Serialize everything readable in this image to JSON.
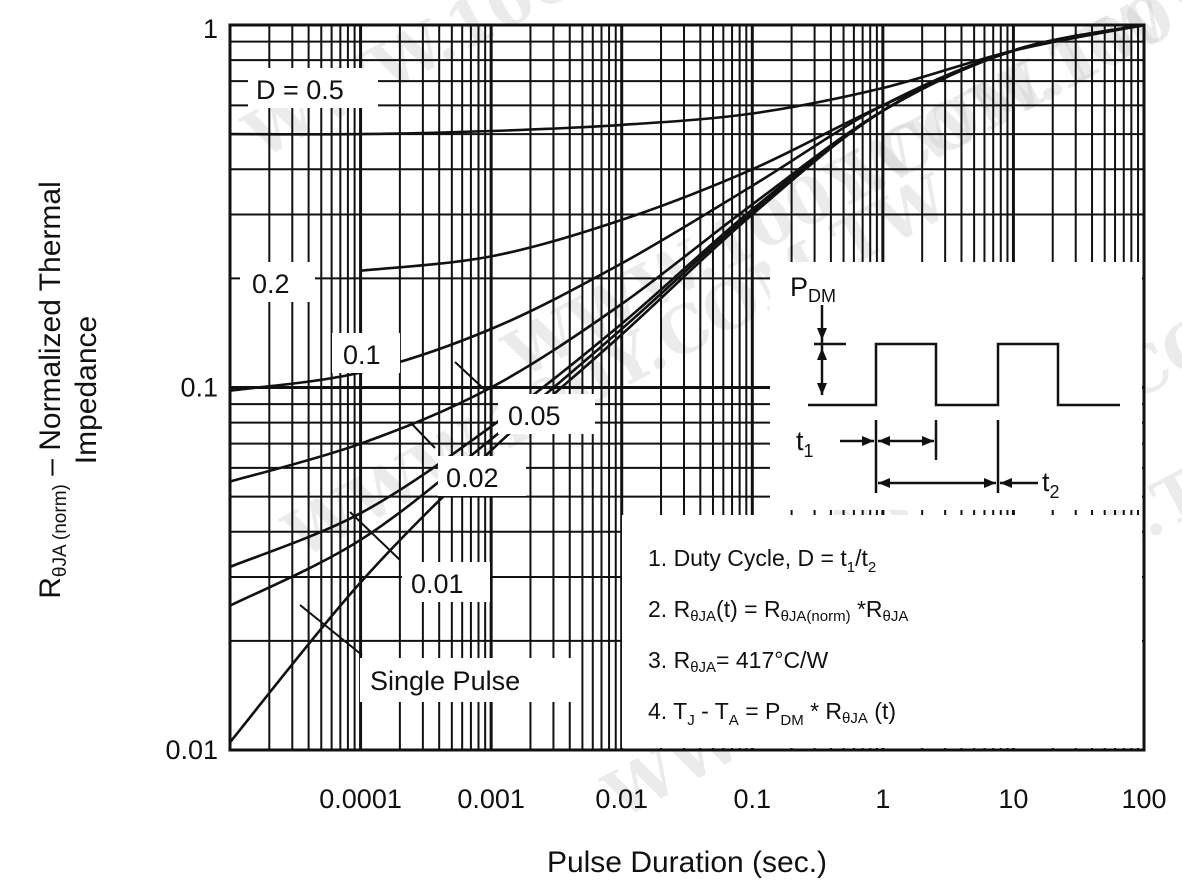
{
  "chart_data": {
    "type": "line",
    "title": "",
    "xlabel": "Pulse Duration (sec.)",
    "ylabel_main": "R",
    "ylabel_sub": "θJA (norm)",
    "ylabel_rest": " – Normalized Thermal",
    "ylabel_line2": "Impedance",
    "x_scale": "log",
    "y_scale": "log",
    "xlim": [
      1e-05,
      100
    ],
    "ylim": [
      0.01,
      1
    ],
    "x_ticks": [
      {
        "value": 0.0001,
        "label": "0.0001"
      },
      {
        "value": 0.001,
        "label": "0.001"
      },
      {
        "value": 0.01,
        "label": "0.01"
      },
      {
        "value": 0.1,
        "label": "0.1"
      },
      {
        "value": 1,
        "label": "1"
      },
      {
        "value": 10,
        "label": "10"
      },
      {
        "value": 100,
        "label": "100"
      }
    ],
    "y_ticks": [
      {
        "value": 1,
        "label": "1"
      },
      {
        "value": 0.1,
        "label": "0.1"
      },
      {
        "value": 0.01,
        "label": "0.01"
      }
    ],
    "grid": true,
    "series": [
      {
        "name": "D = 0.5",
        "x": [
          1e-05,
          0.0001,
          0.001,
          0.01,
          0.1,
          1,
          10,
          100
        ],
        "y": [
          0.5,
          0.5,
          0.51,
          0.53,
          0.57,
          0.67,
          0.85,
          1.0
        ]
      },
      {
        "name": "0.2",
        "x": [
          0.0001,
          0.001,
          0.01,
          0.1,
          1,
          10,
          100
        ],
        "y": [
          0.21,
          0.23,
          0.29,
          0.4,
          0.6,
          0.85,
          1.0
        ]
      },
      {
        "name": "0.1",
        "x": [
          1e-05,
          0.0001,
          0.001,
          0.01,
          0.1,
          1,
          10,
          100
        ],
        "y": [
          0.098,
          0.11,
          0.145,
          0.22,
          0.36,
          0.6,
          0.85,
          1.0
        ]
      },
      {
        "name": "0.05",
        "x": [
          1e-05,
          0.0001,
          0.001,
          0.01,
          0.1,
          1,
          10,
          100
        ],
        "y": [
          0.055,
          0.07,
          0.1,
          0.17,
          0.32,
          0.58,
          0.85,
          1.0
        ]
      },
      {
        "name": "0.02",
        "x": [
          1e-05,
          0.0001,
          0.001,
          0.01,
          0.1,
          1,
          10,
          100
        ],
        "y": [
          0.032,
          0.045,
          0.078,
          0.15,
          0.31,
          0.58,
          0.85,
          1.0
        ]
      },
      {
        "name": "0.01",
        "x": [
          1e-05,
          0.0001,
          0.001,
          0.01,
          0.1,
          1,
          10,
          100
        ],
        "y": [
          0.025,
          0.038,
          0.072,
          0.145,
          0.305,
          0.58,
          0.85,
          1.0
        ]
      },
      {
        "name": "Single Pulse",
        "x": [
          1e-05,
          0.0001,
          0.001,
          0.01,
          0.1,
          1,
          10,
          100
        ],
        "y": [
          0.0105,
          0.029,
          0.067,
          0.14,
          0.3,
          0.58,
          0.85,
          1.0
        ]
      }
    ]
  },
  "inset": {
    "pdm_main": "P",
    "pdm_sub": "DM",
    "t1_main": "t",
    "t1_sub": "1",
    "t2_main": "t",
    "t2_sub": "2"
  },
  "notes": {
    "n1_a": "1. Duty Cycle, D = t",
    "n1_b": "1",
    "n1_c": "/t",
    "n1_d": "2",
    "n2_a": "2. R",
    "n2_b": "θJA",
    "n2_c": "(t) = R",
    "n2_d": "θJA(norm)",
    "n2_e": " *R",
    "n2_f": "θJA",
    "n3_a": "3. R",
    "n3_b": "θJA",
    "n3_c": "= 417°C/W",
    "n4_a": "4. T",
    "n4_b": "J",
    "n4_c": " - T",
    "n4_d": "A",
    "n4_e": " = P",
    "n4_f": "DM",
    "n4_g": " * R",
    "n4_h": "θJA",
    "n4_i": " (t)"
  },
  "watermark": "WWW.100Y.COM.TW",
  "colors": {
    "ink": "#111111",
    "watermark": "#c8c8c8"
  }
}
